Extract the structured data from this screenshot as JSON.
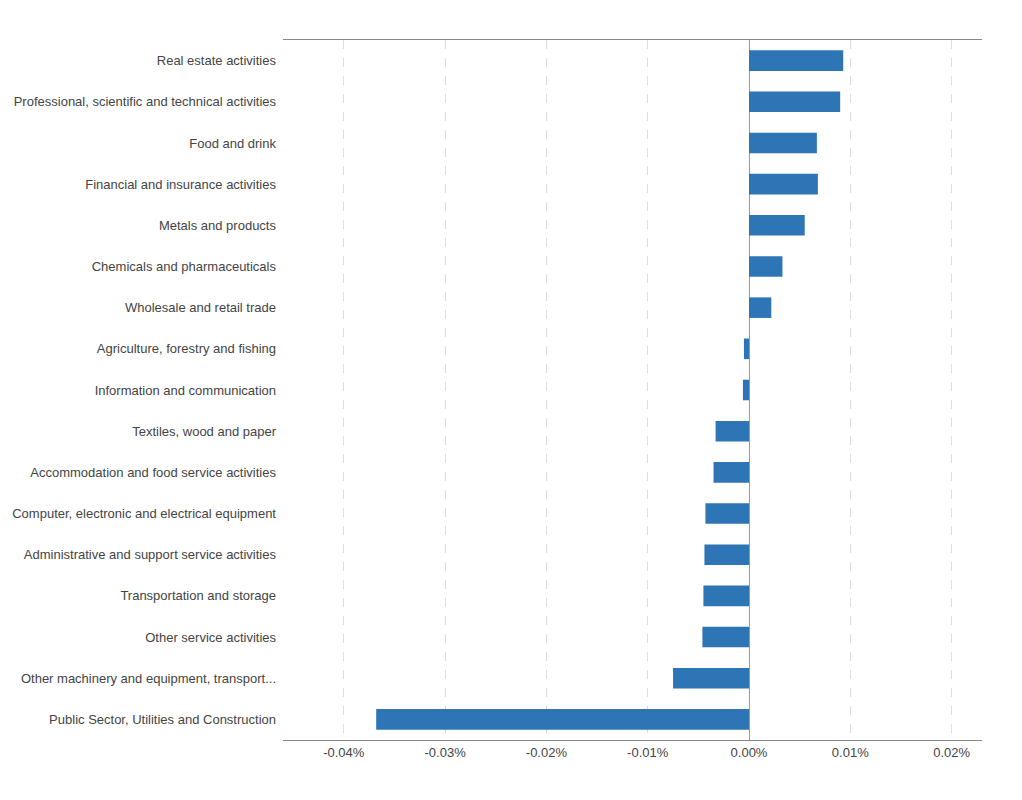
{
  "chart_data": {
    "type": "bar",
    "orientation": "horizontal",
    "categories": [
      "Real estate activities",
      "Professional, scientific and technical activities",
      "Food and drink",
      "Financial and insurance activities",
      "Metals and products",
      "Chemicals and pharmaceuticals",
      "Wholesale and retail trade",
      "Agriculture, forestry and fishing",
      "Information and communication",
      "Textiles, wood and paper",
      "Accommodation and food service activities",
      "Computer, electronic and electrical equipment",
      "Administrative and support service activities",
      "Transportation and storage",
      "Other service activities",
      "Other machinery and equipment, transport...",
      "Public Sector, Utilities and Construction"
    ],
    "values": [
      0.0093,
      0.009,
      0.0067,
      0.0068,
      0.0055,
      0.0033,
      0.0022,
      -0.0005,
      -0.0006,
      -0.0033,
      -0.0035,
      -0.0043,
      -0.0044,
      -0.0045,
      -0.0046,
      -0.0075,
      -0.0368
    ],
    "color": "#2E75B6",
    "xlim": [
      -0.046,
      0.023
    ],
    "xticks": [
      {
        "value": -0.04,
        "label": "-0.04%"
      },
      {
        "value": -0.03,
        "label": "-0.03%"
      },
      {
        "value": -0.02,
        "label": "-0.02%"
      },
      {
        "value": -0.01,
        "label": "-0.01%"
      },
      {
        "value": 0.0,
        "label": "0.00%"
      },
      {
        "value": 0.01,
        "label": "0.01%"
      },
      {
        "value": 0.02,
        "label": "0.02%"
      }
    ],
    "grid": true
  }
}
